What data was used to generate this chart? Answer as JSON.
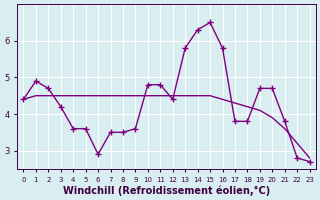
{
  "x": [
    0,
    1,
    2,
    3,
    4,
    5,
    6,
    7,
    8,
    9,
    10,
    11,
    12,
    13,
    14,
    15,
    16,
    17,
    18,
    19,
    20,
    21,
    22,
    23
  ],
  "y_data": [
    4.4,
    4.9,
    4.7,
    4.2,
    3.6,
    3.6,
    2.9,
    3.5,
    3.5,
    3.6,
    4.8,
    4.8,
    4.4,
    5.8,
    6.3,
    6.5,
    5.8,
    3.8,
    3.8,
    4.7,
    4.7,
    3.8,
    2.8,
    2.7
  ],
  "y_trend": [
    4.4,
    4.5,
    4.5,
    4.5,
    4.5,
    4.5,
    4.5,
    4.5,
    4.5,
    4.5,
    4.5,
    4.5,
    4.5,
    4.5,
    4.5,
    4.5,
    4.4,
    4.3,
    4.2,
    4.1,
    3.9,
    3.6,
    3.2,
    2.8
  ],
  "line_color": "#800080",
  "trend_color": "#800080",
  "bg_color": "#d8eef0",
  "grid_color": "#ffffff",
  "xlabel": "Windchill (Refroidissement éolien,°C)",
  "ylabel": "",
  "xlim": [
    0,
    23
  ],
  "ylim": [
    2.5,
    7.0
  ],
  "yticks": [
    3,
    4,
    5,
    6
  ],
  "xtick_labels": [
    "0",
    "1",
    "2",
    "3",
    "4",
    "5",
    "6",
    "7",
    "8",
    "9",
    "10",
    "11",
    "12",
    "13",
    "14",
    "15",
    "16",
    "17",
    "18",
    "19",
    "20",
    "21",
    "22",
    "23"
  ],
  "marker": "+",
  "markersize": 4,
  "linewidth": 1.0,
  "trend_linewidth": 1.0,
  "xlabel_fontsize": 7,
  "tick_fontsize": 6,
  "tick_color": "#400040"
}
